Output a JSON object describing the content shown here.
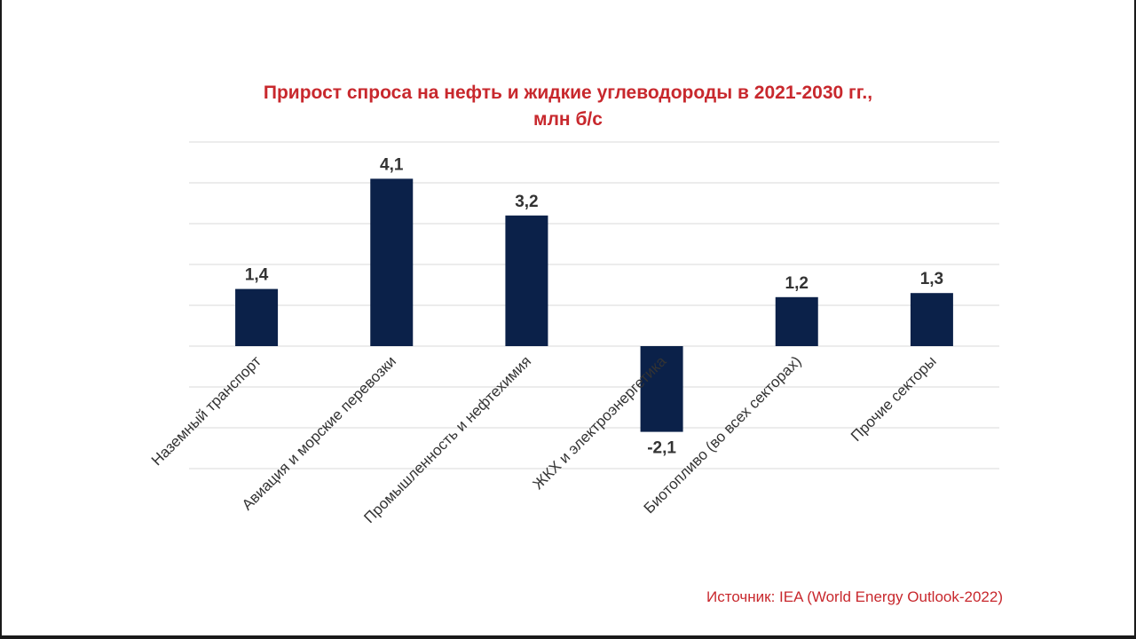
{
  "colors": {
    "title": "#c8282d",
    "bar": "#0b2149",
    "grid": "#d9d9d9",
    "text": "#333333",
    "source": "#c8282d"
  },
  "chart_data": {
    "type": "bar",
    "title_line1": "Прирост спроса на нефть и жидкие углеводороды в 2021-2030 гг.,",
    "title_line2": "млн б/с",
    "categories": [
      "Наземный транспорт",
      "Авиация и морские перевозки",
      "Промышленность и нефтехимия",
      "ЖКХ и электроэнергетика",
      "Биотопливо (во всех секторах)",
      "Прочие секторы"
    ],
    "values": [
      1.4,
      4.1,
      3.2,
      -2.1,
      1.2,
      1.3
    ],
    "value_labels": [
      "1,4",
      "4,1",
      "3,2",
      "-2,1",
      "1,2",
      "1,3"
    ],
    "ylim": [
      -3,
      5
    ],
    "gridline_step": 1,
    "grid": true,
    "legend": "none",
    "source": "Источник: IEA (World Energy Outlook-2022)"
  }
}
